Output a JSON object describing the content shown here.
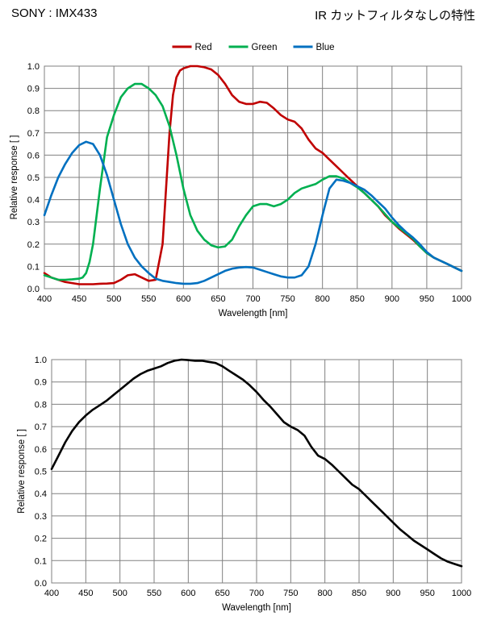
{
  "header": {
    "left": "SONY : IMX433",
    "right": "IR カットフィルタなしの特性"
  },
  "colors": {
    "red": "#C00000",
    "green": "#00B050",
    "blue": "#0070C0",
    "black": "#000000",
    "grid": "#808080"
  },
  "chart_data": [
    {
      "type": "line",
      "title": "",
      "xlabel": "Wavelength  [nm]",
      "ylabel": "Relative response  [ ]",
      "xlim": [
        400,
        1000
      ],
      "ylim": [
        0,
        1.0
      ],
      "xticks": [
        400,
        450,
        500,
        550,
        600,
        650,
        700,
        750,
        800,
        850,
        900,
        950,
        1000
      ],
      "xtick_labels": [
        "400",
        "450",
        "500",
        "550",
        "600",
        "650",
        "700",
        "750",
        "800",
        "850",
        "900",
        "950",
        "1000"
      ],
      "yticks": [
        0,
        0.1,
        0.2,
        0.3,
        0.4,
        0.5,
        0.6,
        0.7,
        0.8,
        0.9,
        1.0
      ],
      "ytick_labels": [
        "0.0",
        "0.1",
        "0.2",
        "0.3",
        "0.4",
        "0.5",
        "0.6",
        "0.7",
        "0.8",
        "0.9",
        "1.0"
      ],
      "grid": true,
      "legend": "top-center",
      "series": [
        {
          "name": "Red",
          "color": "#C00000",
          "x": [
            400,
            410,
            420,
            430,
            440,
            450,
            460,
            470,
            480,
            490,
            500,
            510,
            520,
            530,
            540,
            550,
            560,
            570,
            575,
            580,
            585,
            590,
            595,
            600,
            610,
            620,
            630,
            640,
            650,
            660,
            670,
            680,
            690,
            700,
            710,
            720,
            730,
            740,
            750,
            760,
            770,
            780,
            790,
            800,
            810,
            820,
            830,
            840,
            850,
            860,
            870,
            880,
            890,
            900,
            910,
            920,
            930,
            940,
            950,
            960,
            970,
            980,
            990,
            1000
          ],
          "y": [
            0.07,
            0.05,
            0.04,
            0.03,
            0.025,
            0.02,
            0.02,
            0.02,
            0.022,
            0.023,
            0.025,
            0.04,
            0.06,
            0.065,
            0.05,
            0.035,
            0.04,
            0.2,
            0.45,
            0.7,
            0.87,
            0.95,
            0.98,
            0.99,
            1.0,
            1.0,
            0.995,
            0.985,
            0.96,
            0.92,
            0.87,
            0.84,
            0.83,
            0.83,
            0.84,
            0.835,
            0.81,
            0.78,
            0.76,
            0.75,
            0.72,
            0.67,
            0.63,
            0.61,
            0.58,
            0.55,
            0.52,
            0.49,
            0.46,
            0.43,
            0.4,
            0.37,
            0.33,
            0.3,
            0.27,
            0.245,
            0.22,
            0.19,
            0.16,
            0.14,
            0.125,
            0.11,
            0.095,
            0.08
          ]
        },
        {
          "name": "Green",
          "color": "#00B050",
          "x": [
            400,
            410,
            420,
            430,
            440,
            450,
            455,
            460,
            465,
            470,
            480,
            490,
            500,
            510,
            520,
            530,
            540,
            550,
            560,
            570,
            580,
            590,
            600,
            610,
            620,
            630,
            640,
            650,
            660,
            670,
            680,
            690,
            700,
            710,
            720,
            730,
            740,
            750,
            760,
            770,
            780,
            790,
            800,
            810,
            820,
            830,
            840,
            850,
            860,
            870,
            880,
            890,
            900,
            910,
            920,
            930,
            940,
            950,
            960,
            970,
            980,
            990,
            1000
          ],
          "y": [
            0.06,
            0.05,
            0.04,
            0.04,
            0.042,
            0.045,
            0.05,
            0.07,
            0.12,
            0.2,
            0.45,
            0.68,
            0.78,
            0.86,
            0.9,
            0.92,
            0.92,
            0.9,
            0.87,
            0.82,
            0.73,
            0.6,
            0.45,
            0.33,
            0.26,
            0.22,
            0.195,
            0.185,
            0.19,
            0.22,
            0.28,
            0.33,
            0.37,
            0.38,
            0.38,
            0.37,
            0.38,
            0.4,
            0.43,
            0.45,
            0.46,
            0.47,
            0.49,
            0.505,
            0.505,
            0.495,
            0.475,
            0.455,
            0.43,
            0.4,
            0.37,
            0.335,
            0.3,
            0.275,
            0.25,
            0.225,
            0.19,
            0.16,
            0.14,
            0.125,
            0.11,
            0.095,
            0.08
          ]
        },
        {
          "name": "Blue",
          "color": "#0070C0",
          "x": [
            400,
            410,
            420,
            430,
            440,
            450,
            460,
            470,
            480,
            490,
            500,
            510,
            520,
            530,
            540,
            550,
            560,
            570,
            580,
            590,
            600,
            610,
            620,
            630,
            640,
            650,
            660,
            670,
            680,
            690,
            700,
            710,
            720,
            730,
            740,
            750,
            760,
            770,
            780,
            790,
            800,
            810,
            820,
            830,
            840,
            850,
            860,
            870,
            880,
            890,
            900,
            910,
            920,
            930,
            940,
            950,
            960,
            970,
            980,
            990,
            1000
          ],
          "y": [
            0.33,
            0.42,
            0.5,
            0.56,
            0.61,
            0.645,
            0.66,
            0.65,
            0.6,
            0.51,
            0.4,
            0.29,
            0.2,
            0.14,
            0.1,
            0.07,
            0.045,
            0.035,
            0.03,
            0.025,
            0.022,
            0.022,
            0.025,
            0.035,
            0.05,
            0.065,
            0.08,
            0.09,
            0.095,
            0.097,
            0.095,
            0.085,
            0.075,
            0.065,
            0.055,
            0.05,
            0.05,
            0.06,
            0.1,
            0.2,
            0.33,
            0.45,
            0.49,
            0.485,
            0.475,
            0.46,
            0.445,
            0.42,
            0.39,
            0.36,
            0.32,
            0.285,
            0.255,
            0.23,
            0.2,
            0.165,
            0.14,
            0.125,
            0.11,
            0.095,
            0.08
          ]
        }
      ]
    },
    {
      "type": "line",
      "title": "",
      "xlabel": "Wavelength  [nm]",
      "ylabel": "Relative response  [ ]",
      "xlim": [
        400,
        1000
      ],
      "ylim": [
        0,
        1.0
      ],
      "xticks": [
        400,
        450,
        500,
        550,
        600,
        650,
        700,
        750,
        800,
        850,
        900,
        950,
        1000
      ],
      "xtick_labels": [
        "400",
        "450",
        "500",
        "550",
        "600",
        "650",
        "700",
        "750",
        "800",
        "850",
        "900",
        "950",
        "1000"
      ],
      "yticks": [
        0,
        0.1,
        0.2,
        0.3,
        0.4,
        0.5,
        0.6,
        0.7,
        0.8,
        0.9,
        1.0
      ],
      "ytick_labels": [
        "0.0",
        "0.1",
        "0.2",
        "0.3",
        "0.4",
        "0.5",
        "0.6",
        "0.7",
        "0.8",
        "0.9",
        "1.0"
      ],
      "grid": true,
      "legend": "none",
      "series": [
        {
          "color": "#000000",
          "x": [
            400,
            410,
            420,
            430,
            440,
            450,
            460,
            470,
            480,
            490,
            500,
            510,
            520,
            530,
            540,
            550,
            560,
            570,
            580,
            590,
            600,
            610,
            620,
            630,
            640,
            650,
            660,
            670,
            680,
            690,
            700,
            710,
            720,
            730,
            740,
            750,
            760,
            770,
            780,
            790,
            800,
            810,
            820,
            830,
            840,
            850,
            860,
            870,
            880,
            890,
            900,
            910,
            920,
            930,
            940,
            950,
            960,
            970,
            980,
            990,
            1000
          ],
          "y": [
            0.51,
            0.57,
            0.63,
            0.68,
            0.72,
            0.75,
            0.775,
            0.795,
            0.815,
            0.84,
            0.865,
            0.89,
            0.915,
            0.935,
            0.95,
            0.96,
            0.97,
            0.985,
            0.995,
            1.0,
            0.998,
            0.995,
            0.995,
            0.99,
            0.985,
            0.97,
            0.95,
            0.93,
            0.91,
            0.885,
            0.855,
            0.82,
            0.79,
            0.755,
            0.72,
            0.7,
            0.685,
            0.66,
            0.61,
            0.57,
            0.555,
            0.53,
            0.5,
            0.47,
            0.44,
            0.42,
            0.39,
            0.36,
            0.33,
            0.3,
            0.27,
            0.24,
            0.215,
            0.19,
            0.17,
            0.15,
            0.13,
            0.11,
            0.095,
            0.085,
            0.075
          ]
        }
      ]
    }
  ]
}
